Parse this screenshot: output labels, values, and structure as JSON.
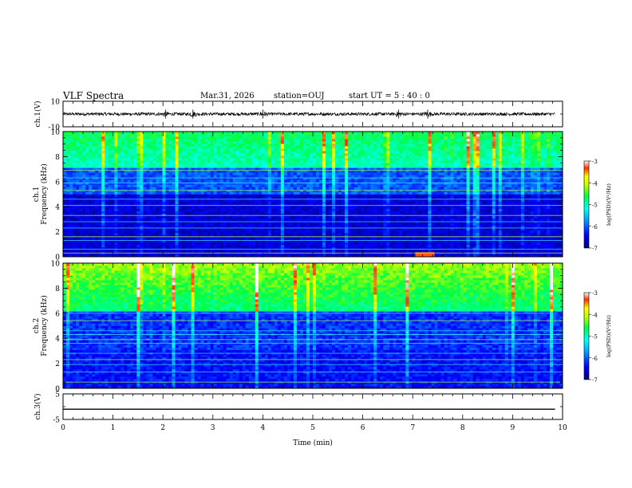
{
  "header": {
    "title": "VLF Spectra",
    "date": "Mar.31, 2026",
    "station": "station=OUJ",
    "start": "start  UT =  5 : 40 : 0"
  },
  "chart_data": [
    {
      "id": "ch1",
      "type": "line",
      "ylabel": "ch.1(V)",
      "ylim": [
        -10,
        10
      ],
      "yticks": [
        "10",
        "-10"
      ],
      "xlim": [
        0,
        10
      ],
      "data_end_min": 9.85,
      "baseline": 0,
      "noise_amplitude": 1.2,
      "bursts_min": [
        2.05,
        2.6,
        4.0,
        6.72,
        7.3
      ]
    },
    {
      "id": "spec1",
      "type": "heatmap",
      "ylabel_top": "ch.1",
      "ylabel": "Frequency (kHz)",
      "ylim": [
        0,
        10
      ],
      "yticks": [
        "0",
        "2",
        "4",
        "6",
        "8",
        "10"
      ],
      "xlim": [
        0,
        10
      ],
      "colorbar": {
        "label": "log(PSD)(V²/Hz)",
        "range": [
          -7,
          -3
        ],
        "ticks": [
          "-3",
          "-4",
          "-5",
          "-6",
          "-7"
        ]
      }
    },
    {
      "id": "spec2",
      "type": "heatmap",
      "ylabel_top": "ch.2",
      "ylabel": "Frequency (kHz)",
      "ylim": [
        0,
        10
      ],
      "yticks": [
        "0",
        "2",
        "4",
        "6",
        "8",
        "10"
      ],
      "xlim": [
        0,
        10
      ],
      "colorbar": {
        "label": "log(PSD)(V²/Hz)",
        "range": [
          -7,
          -3
        ],
        "ticks": [
          "-3",
          "-4",
          "-5",
          "-6",
          "-7"
        ]
      }
    },
    {
      "id": "ch3",
      "type": "line",
      "ylabel": "ch.3(V)",
      "ylim": [
        -5,
        5
      ],
      "yticks": [
        "5",
        "-5"
      ],
      "xlim": [
        0,
        10
      ],
      "data_end_min": 9.85,
      "baseline": -1
    }
  ],
  "x_axis": {
    "label": "Time  (min)",
    "ticks": [
      "0",
      "1",
      "2",
      "3",
      "4",
      "5",
      "6",
      "7",
      "8",
      "9",
      "10"
    ]
  }
}
